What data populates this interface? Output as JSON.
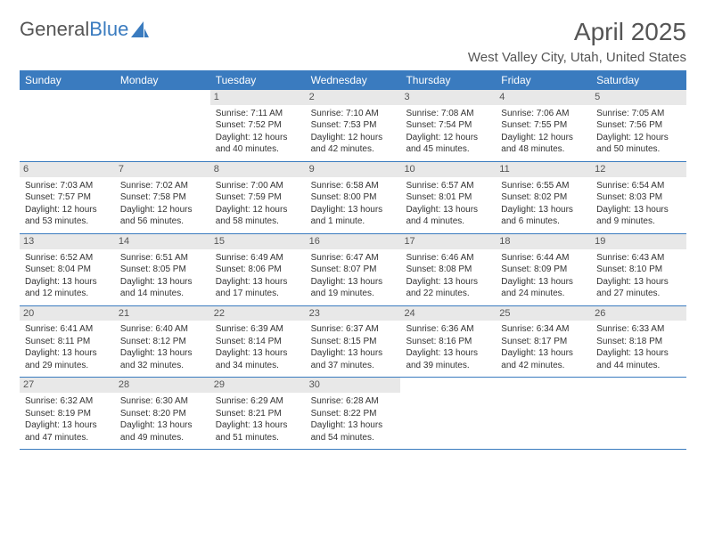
{
  "brand": {
    "part1": "General",
    "part2": "Blue"
  },
  "title": "April 2025",
  "location": "West Valley City, Utah, United States",
  "colors": {
    "header_bg": "#3a7bbf",
    "header_text": "#ffffff",
    "daynum_bg": "#e8e8e8",
    "border": "#3a7bbf",
    "body_text": "#333333",
    "title_text": "#555555"
  },
  "day_names": [
    "Sunday",
    "Monday",
    "Tuesday",
    "Wednesday",
    "Thursday",
    "Friday",
    "Saturday"
  ],
  "weeks": [
    [
      {
        "day": "",
        "sunrise": "",
        "sunset": "",
        "daylight": ""
      },
      {
        "day": "",
        "sunrise": "",
        "sunset": "",
        "daylight": ""
      },
      {
        "day": "1",
        "sunrise": "Sunrise: 7:11 AM",
        "sunset": "Sunset: 7:52 PM",
        "daylight": "Daylight: 12 hours and 40 minutes."
      },
      {
        "day": "2",
        "sunrise": "Sunrise: 7:10 AM",
        "sunset": "Sunset: 7:53 PM",
        "daylight": "Daylight: 12 hours and 42 minutes."
      },
      {
        "day": "3",
        "sunrise": "Sunrise: 7:08 AM",
        "sunset": "Sunset: 7:54 PM",
        "daylight": "Daylight: 12 hours and 45 minutes."
      },
      {
        "day": "4",
        "sunrise": "Sunrise: 7:06 AM",
        "sunset": "Sunset: 7:55 PM",
        "daylight": "Daylight: 12 hours and 48 minutes."
      },
      {
        "day": "5",
        "sunrise": "Sunrise: 7:05 AM",
        "sunset": "Sunset: 7:56 PM",
        "daylight": "Daylight: 12 hours and 50 minutes."
      }
    ],
    [
      {
        "day": "6",
        "sunrise": "Sunrise: 7:03 AM",
        "sunset": "Sunset: 7:57 PM",
        "daylight": "Daylight: 12 hours and 53 minutes."
      },
      {
        "day": "7",
        "sunrise": "Sunrise: 7:02 AM",
        "sunset": "Sunset: 7:58 PM",
        "daylight": "Daylight: 12 hours and 56 minutes."
      },
      {
        "day": "8",
        "sunrise": "Sunrise: 7:00 AM",
        "sunset": "Sunset: 7:59 PM",
        "daylight": "Daylight: 12 hours and 58 minutes."
      },
      {
        "day": "9",
        "sunrise": "Sunrise: 6:58 AM",
        "sunset": "Sunset: 8:00 PM",
        "daylight": "Daylight: 13 hours and 1 minute."
      },
      {
        "day": "10",
        "sunrise": "Sunrise: 6:57 AM",
        "sunset": "Sunset: 8:01 PM",
        "daylight": "Daylight: 13 hours and 4 minutes."
      },
      {
        "day": "11",
        "sunrise": "Sunrise: 6:55 AM",
        "sunset": "Sunset: 8:02 PM",
        "daylight": "Daylight: 13 hours and 6 minutes."
      },
      {
        "day": "12",
        "sunrise": "Sunrise: 6:54 AM",
        "sunset": "Sunset: 8:03 PM",
        "daylight": "Daylight: 13 hours and 9 minutes."
      }
    ],
    [
      {
        "day": "13",
        "sunrise": "Sunrise: 6:52 AM",
        "sunset": "Sunset: 8:04 PM",
        "daylight": "Daylight: 13 hours and 12 minutes."
      },
      {
        "day": "14",
        "sunrise": "Sunrise: 6:51 AM",
        "sunset": "Sunset: 8:05 PM",
        "daylight": "Daylight: 13 hours and 14 minutes."
      },
      {
        "day": "15",
        "sunrise": "Sunrise: 6:49 AM",
        "sunset": "Sunset: 8:06 PM",
        "daylight": "Daylight: 13 hours and 17 minutes."
      },
      {
        "day": "16",
        "sunrise": "Sunrise: 6:47 AM",
        "sunset": "Sunset: 8:07 PM",
        "daylight": "Daylight: 13 hours and 19 minutes."
      },
      {
        "day": "17",
        "sunrise": "Sunrise: 6:46 AM",
        "sunset": "Sunset: 8:08 PM",
        "daylight": "Daylight: 13 hours and 22 minutes."
      },
      {
        "day": "18",
        "sunrise": "Sunrise: 6:44 AM",
        "sunset": "Sunset: 8:09 PM",
        "daylight": "Daylight: 13 hours and 24 minutes."
      },
      {
        "day": "19",
        "sunrise": "Sunrise: 6:43 AM",
        "sunset": "Sunset: 8:10 PM",
        "daylight": "Daylight: 13 hours and 27 minutes."
      }
    ],
    [
      {
        "day": "20",
        "sunrise": "Sunrise: 6:41 AM",
        "sunset": "Sunset: 8:11 PM",
        "daylight": "Daylight: 13 hours and 29 minutes."
      },
      {
        "day": "21",
        "sunrise": "Sunrise: 6:40 AM",
        "sunset": "Sunset: 8:12 PM",
        "daylight": "Daylight: 13 hours and 32 minutes."
      },
      {
        "day": "22",
        "sunrise": "Sunrise: 6:39 AM",
        "sunset": "Sunset: 8:14 PM",
        "daylight": "Daylight: 13 hours and 34 minutes."
      },
      {
        "day": "23",
        "sunrise": "Sunrise: 6:37 AM",
        "sunset": "Sunset: 8:15 PM",
        "daylight": "Daylight: 13 hours and 37 minutes."
      },
      {
        "day": "24",
        "sunrise": "Sunrise: 6:36 AM",
        "sunset": "Sunset: 8:16 PM",
        "daylight": "Daylight: 13 hours and 39 minutes."
      },
      {
        "day": "25",
        "sunrise": "Sunrise: 6:34 AM",
        "sunset": "Sunset: 8:17 PM",
        "daylight": "Daylight: 13 hours and 42 minutes."
      },
      {
        "day": "26",
        "sunrise": "Sunrise: 6:33 AM",
        "sunset": "Sunset: 8:18 PM",
        "daylight": "Daylight: 13 hours and 44 minutes."
      }
    ],
    [
      {
        "day": "27",
        "sunrise": "Sunrise: 6:32 AM",
        "sunset": "Sunset: 8:19 PM",
        "daylight": "Daylight: 13 hours and 47 minutes."
      },
      {
        "day": "28",
        "sunrise": "Sunrise: 6:30 AM",
        "sunset": "Sunset: 8:20 PM",
        "daylight": "Daylight: 13 hours and 49 minutes."
      },
      {
        "day": "29",
        "sunrise": "Sunrise: 6:29 AM",
        "sunset": "Sunset: 8:21 PM",
        "daylight": "Daylight: 13 hours and 51 minutes."
      },
      {
        "day": "30",
        "sunrise": "Sunrise: 6:28 AM",
        "sunset": "Sunset: 8:22 PM",
        "daylight": "Daylight: 13 hours and 54 minutes."
      },
      {
        "day": "",
        "sunrise": "",
        "sunset": "",
        "daylight": ""
      },
      {
        "day": "",
        "sunrise": "",
        "sunset": "",
        "daylight": ""
      },
      {
        "day": "",
        "sunrise": "",
        "sunset": "",
        "daylight": ""
      }
    ]
  ]
}
